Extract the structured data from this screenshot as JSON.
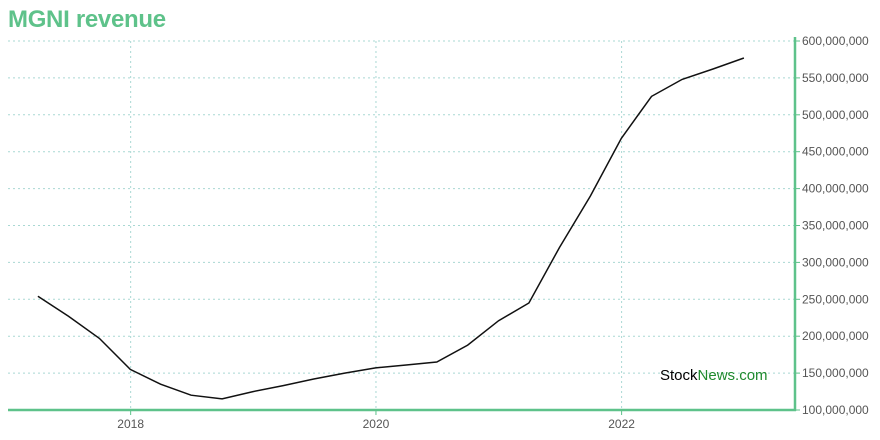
{
  "chart_data": {
    "type": "line",
    "title": "MGNI revenue",
    "xlabel": "",
    "ylabel": "",
    "x": [
      "2017-03-31",
      "2017-06-30",
      "2017-09-30",
      "2017-12-31",
      "2018-03-31",
      "2018-06-30",
      "2018-09-30",
      "2018-12-31",
      "2019-03-31",
      "2019-06-30",
      "2019-09-30",
      "2019-12-31",
      "2020-03-31",
      "2020-06-30",
      "2020-09-30",
      "2020-12-31",
      "2021-03-31",
      "2021-06-30",
      "2021-09-30",
      "2021-12-31",
      "2022-03-31",
      "2022-06-30",
      "2022-09-30",
      "2022-12-31"
    ],
    "series": [
      {
        "values": [
          254000000,
          227000000,
          197000000,
          155000000,
          135000000,
          120000000,
          115000000,
          125000000,
          133000000,
          142000000,
          150000000,
          157000000,
          161000000,
          165000000,
          188000000,
          221000000,
          245000000,
          320000000,
          390000000,
          468000000,
          525000000,
          548000000,
          562000000,
          577000000
        ]
      }
    ],
    "xticks": [
      "2018",
      "2020",
      "2022"
    ],
    "xtick_dates": [
      "2018-01-01",
      "2020-01-01",
      "2022-01-01"
    ],
    "yticks": [
      "100,000,000",
      "150,000,000",
      "200,000,000",
      "250,000,000",
      "300,000,000",
      "350,000,000",
      "400,000,000",
      "450,000,000",
      "500,000,000",
      "550,000,000",
      "600,000,000"
    ],
    "ylim": [
      100000000,
      600000000
    ],
    "grid": true,
    "line_color": "#111111",
    "axis_color": "#5ec28a"
  },
  "watermark": {
    "part1": "Stock",
    "part2": "News.com"
  }
}
